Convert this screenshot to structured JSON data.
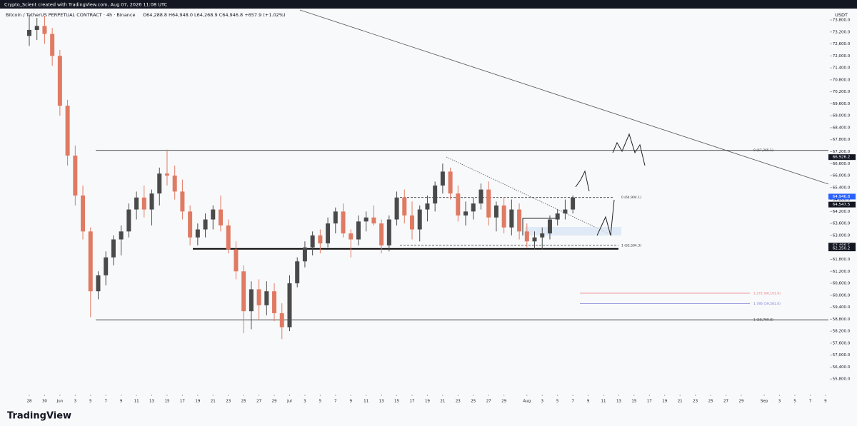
{
  "header": "Crypto_Scient created with TradingView.com, Aug 07, 2026 11:08 UTC",
  "brand": "TradingView",
  "chart_data": {
    "type": "candlestick",
    "title": "Bitcoin / TetherUS PERPETUAL CONTRACT · 4h · Binance",
    "subtitle": "O64,288.8 H64,948.0 L64,268.9 C64,946.8 +657.9 (+1.02%)",
    "currency": "USDT",
    "up_color": "#4a4a4a",
    "down_color": "#e07a62",
    "x": [
      "2026-05-28",
      "2026-05-29",
      "2026-05-30",
      "2026-05-31",
      "2026-06-01",
      "2026-06-02",
      "2026-06-03",
      "2026-06-04",
      "2026-06-05",
      "2026-06-06",
      "2026-06-07",
      "2026-06-08",
      "2026-06-09",
      "2026-06-10",
      "2026-06-11",
      "2026-06-12",
      "2026-06-13",
      "2026-06-14",
      "2026-06-15",
      "2026-06-16",
      "2026-06-17",
      "2026-06-18",
      "2026-06-19",
      "2026-06-20",
      "2026-06-21",
      "2026-06-22",
      "2026-06-23",
      "2026-06-24",
      "2026-06-25",
      "2026-06-26",
      "2026-06-27",
      "2026-06-28",
      "2026-06-29",
      "2026-06-30",
      "2026-07-01",
      "2026-07-02",
      "2026-07-03",
      "2026-07-04",
      "2026-07-05",
      "2026-07-06",
      "2026-07-07",
      "2026-07-08",
      "2026-07-09",
      "2026-07-10",
      "2026-07-11",
      "2026-07-12",
      "2026-07-13",
      "2026-07-14",
      "2026-07-15",
      "2026-07-16",
      "2026-07-17",
      "2026-07-18",
      "2026-07-19",
      "2026-07-20",
      "2026-07-21",
      "2026-07-22",
      "2026-07-23",
      "2026-07-24",
      "2026-07-25",
      "2026-07-26",
      "2026-07-27",
      "2026-07-28",
      "2026-07-29",
      "2026-07-30",
      "2026-07-31",
      "2026-08-01",
      "2026-08-02",
      "2026-08-03",
      "2026-08-04",
      "2026-08-05",
      "2026-08-06",
      "2026-08-07"
    ],
    "open": [
      73000,
      73300,
      73500,
      73100,
      72000,
      69500,
      67000,
      65000,
      63200,
      60200,
      61000,
      61900,
      62800,
      63200,
      64300,
      64900,
      64300,
      65100,
      66100,
      66000,
      65200,
      64200,
      62900,
      63300,
      63800,
      64300,
      63500,
      62300,
      61200,
      59200,
      60300,
      59500,
      60200,
      59100,
      58400,
      60600,
      61700,
      62400,
      63000,
      62600,
      63600,
      64200,
      63100,
      62800,
      63700,
      63900,
      63600,
      62500,
      63800,
      64900,
      64000,
      63300,
      64300,
      64600,
      65500,
      66200,
      65100,
      64000,
      64200,
      64600,
      65300,
      63900,
      64500,
      63400,
      64300,
      63200,
      62700,
      62900,
      63100,
      63800,
      64100,
      64300
    ],
    "high": [
      74000,
      73900,
      74000,
      73400,
      72300,
      69800,
      67500,
      65500,
      63400,
      61200,
      62200,
      63000,
      63500,
      64600,
      65200,
      65500,
      65300,
      66400,
      67300,
      66500,
      65800,
      64500,
      63600,
      64100,
      64500,
      65000,
      63800,
      62700,
      61500,
      60700,
      60800,
      60700,
      60600,
      59600,
      61000,
      61900,
      62700,
      63200,
      63300,
      63900,
      64400,
      64600,
      63300,
      64000,
      64200,
      64500,
      63800,
      64000,
      65200,
      65300,
      64700,
      64500,
      65000,
      65700,
      66600,
      66400,
      65500,
      64700,
      64900,
      65600,
      65700,
      64700,
      64900,
      64800,
      64600,
      63600,
      63200,
      63400,
      64000,
      64300,
      64800,
      65000
    ],
    "low": [
      72500,
      72800,
      72600,
      71500,
      69000,
      66500,
      64500,
      62800,
      58900,
      59800,
      60500,
      61500,
      62000,
      62900,
      63800,
      63900,
      63500,
      64500,
      65500,
      64800,
      63800,
      62500,
      62500,
      62900,
      63300,
      63200,
      62100,
      60800,
      58100,
      58300,
      58800,
      59000,
      58700,
      57800,
      58200,
      60400,
      61400,
      62000,
      62100,
      62400,
      63100,
      62900,
      61900,
      62500,
      63200,
      63500,
      62100,
      62200,
      63500,
      63600,
      62800,
      62700,
      63700,
      64200,
      65100,
      64800,
      63700,
      63500,
      63800,
      64300,
      63500,
      63200,
      63100,
      63000,
      62800,
      62400,
      62300,
      62300,
      62800,
      63500,
      63800,
      64100
    ],
    "close": [
      73300,
      73500,
      73100,
      72000,
      69500,
      67000,
      65000,
      63200,
      60200,
      61000,
      61900,
      62800,
      63200,
      64300,
      64900,
      64300,
      65100,
      66100,
      66000,
      65200,
      64200,
      62900,
      63300,
      63800,
      64300,
      63500,
      62300,
      61200,
      59200,
      60300,
      59500,
      60200,
      59100,
      58400,
      60600,
      61700,
      62400,
      63000,
      62600,
      63600,
      64200,
      63100,
      62800,
      63700,
      63900,
      63600,
      62500,
      63800,
      64900,
      64000,
      63300,
      64300,
      64600,
      65500,
      66200,
      65100,
      64000,
      64200,
      64600,
      65300,
      63900,
      64500,
      63400,
      64300,
      63200,
      62700,
      62900,
      63100,
      63800,
      64100,
      64300,
      64900
    ],
    "xticks": [
      {
        "value": "2026-05-28",
        "label": "28"
      },
      {
        "value": "2026-05-30",
        "label": "30"
      },
      {
        "value": "2026-06-01",
        "label": "Jun"
      },
      {
        "value": "2026-06-03",
        "label": "3"
      },
      {
        "value": "2026-06-05",
        "label": "5"
      },
      {
        "value": "2026-06-07",
        "label": "7"
      },
      {
        "value": "2026-06-09",
        "label": "9"
      },
      {
        "value": "2026-06-11",
        "label": "11"
      },
      {
        "value": "2026-06-13",
        "label": "13"
      },
      {
        "value": "2026-06-15",
        "label": "15"
      },
      {
        "value": "2026-06-17",
        "label": "17"
      },
      {
        "value": "2026-06-19",
        "label": "19"
      },
      {
        "value": "2026-06-21",
        "label": "21"
      },
      {
        "value": "2026-06-23",
        "label": "23"
      },
      {
        "value": "2026-06-25",
        "label": "25"
      },
      {
        "value": "2026-06-27",
        "label": "27"
      },
      {
        "value": "2026-06-29",
        "label": "29"
      },
      {
        "value": "2026-07-01",
        "label": "Jul"
      },
      {
        "value": "2026-07-03",
        "label": "3"
      },
      {
        "value": "2026-07-05",
        "label": "5"
      },
      {
        "value": "2026-07-07",
        "label": "7"
      },
      {
        "value": "2026-07-09",
        "label": "9"
      },
      {
        "value": "2026-07-11",
        "label": "11"
      },
      {
        "value": "2026-07-13",
        "label": "13"
      },
      {
        "value": "2026-07-15",
        "label": "15"
      },
      {
        "value": "2026-07-17",
        "label": "17"
      },
      {
        "value": "2026-07-19",
        "label": "19"
      },
      {
        "value": "2026-07-21",
        "label": "21"
      },
      {
        "value": "2026-07-23",
        "label": "23"
      },
      {
        "value": "2026-07-25",
        "label": "25"
      },
      {
        "value": "2026-07-27",
        "label": "27"
      },
      {
        "value": "2026-07-29",
        "label": "29"
      },
      {
        "value": "2026-08-01",
        "label": "Aug"
      },
      {
        "value": "2026-08-03",
        "label": "3"
      },
      {
        "value": "2026-08-05",
        "label": "5"
      },
      {
        "value": "2026-08-07",
        "label": "7"
      },
      {
        "value": "2026-08-09",
        "label": "9"
      },
      {
        "value": "2026-08-11",
        "label": "11"
      },
      {
        "value": "2026-08-13",
        "label": "13"
      },
      {
        "value": "2026-08-15",
        "label": "15"
      },
      {
        "value": "2026-08-17",
        "label": "17"
      },
      {
        "value": "2026-08-19",
        "label": "19"
      },
      {
        "value": "2026-08-21",
        "label": "21"
      },
      {
        "value": "2026-08-23",
        "label": "23"
      },
      {
        "value": "2026-08-25",
        "label": "25"
      },
      {
        "value": "2026-08-27",
        "label": "27"
      },
      {
        "value": "2026-08-29",
        "label": "29"
      },
      {
        "value": "2026-09-01",
        "label": "Sep"
      },
      {
        "value": "2026-09-03",
        "label": "3"
      },
      {
        "value": "2026-09-05",
        "label": "5"
      },
      {
        "value": "2026-09-07",
        "label": "7"
      },
      {
        "value": "2026-09-09",
        "label": "9"
      }
    ],
    "ylim": [
      55200,
      74300
    ],
    "yticks": [
      {
        "value": 55800,
        "label": "55,800.0"
      },
      {
        "value": 56400,
        "label": "56,400.0"
      },
      {
        "value": 57000,
        "label": "57,000.0"
      },
      {
        "value": 57600,
        "label": "57,600.0"
      },
      {
        "value": 58200,
        "label": "58,200.0"
      },
      {
        "value": 58800,
        "label": "58,800.0"
      },
      {
        "value": 59400,
        "label": "59,400.0"
      },
      {
        "value": 60000,
        "label": "60,000.0"
      },
      {
        "value": 60600,
        "label": "60,600.0"
      },
      {
        "value": 61200,
        "label": "61,200.0"
      },
      {
        "value": 61800,
        "label": "61,800.0"
      },
      {
        "value": 62400,
        "label": "62,400.0"
      },
      {
        "value": 63000,
        "label": "63,000.0"
      },
      {
        "value": 63600,
        "label": "63,600.0"
      },
      {
        "value": 64200,
        "label": "64,200.0"
      },
      {
        "value": 64800,
        "label": "64,800.0"
      },
      {
        "value": 65400,
        "label": "65,400.0"
      },
      {
        "value": 66000,
        "label": "66,000.0"
      },
      {
        "value": 66600,
        "label": "66,600.0"
      },
      {
        "value": 67200,
        "label": "67,200.0"
      },
      {
        "value": 67800,
        "label": "67,800.0"
      },
      {
        "value": 68400,
        "label": "68,400.0"
      },
      {
        "value": 69000,
        "label": "69,000.0"
      },
      {
        "value": 69600,
        "label": "69,600.0"
      },
      {
        "value": 70200,
        "label": "70,200.0"
      },
      {
        "value": 70800,
        "label": "70,800.0"
      },
      {
        "value": 71400,
        "label": "71,400.0"
      },
      {
        "value": 72000,
        "label": "72,000.0"
      },
      {
        "value": 72600,
        "label": "72,600.0"
      },
      {
        "value": 73200,
        "label": "73,200.0"
      },
      {
        "value": 73800,
        "label": "73,800.0"
      }
    ],
    "levels": [
      {
        "value": 67265.1,
        "label": "0 (67,265.1)",
        "color": "#333333"
      },
      {
        "value": 64904.1,
        "label": "0 (64,904.1)",
        "color": "#333333"
      },
      {
        "value": 62504.3,
        "label": "1 (62,504.3)",
        "color": "#333333"
      },
      {
        "value": 60101.6,
        "label": "1.272 (60,101.6)",
        "color": "#f08080"
      },
      {
        "value": 59581.0,
        "label": "1.786 (59,581.0)",
        "color": "#7b7fd6"
      },
      {
        "value": 58769.8,
        "label": "1 (58,769.8)",
        "color": "#333333"
      }
    ],
    "price_labels": [
      {
        "value": 66926.2,
        "label": "66,926.2",
        "color": "#131722"
      },
      {
        "value": 64946.8,
        "label": "64,946.8",
        "color": "#2962ff"
      },
      {
        "value": 64547.5,
        "label": "64,547.5",
        "color": "#131722"
      },
      {
        "value": 62488.5,
        "label": "62,488.5",
        "color": "#131722"
      },
      {
        "value": 62361.7,
        "label": "62,361.7",
        "color": "#131722"
      },
      {
        "value": 62350.2,
        "label": "62,350.2",
        "color": "#131722"
      }
    ]
  }
}
